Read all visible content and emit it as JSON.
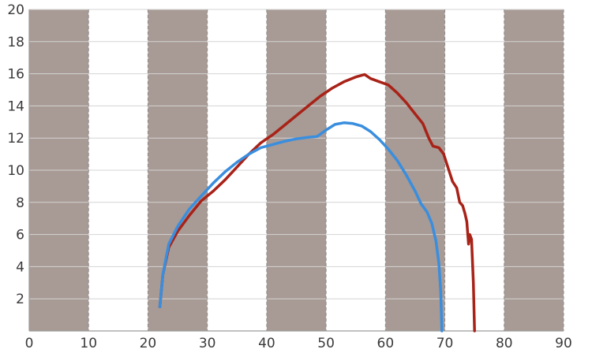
{
  "chart_data": {
    "type": "line",
    "title": "",
    "xlabel": "",
    "ylabel": "",
    "xlim": [
      0,
      90
    ],
    "ylim": [
      0,
      20
    ],
    "x_ticks": [
      0,
      10,
      20,
      30,
      40,
      50,
      60,
      70,
      80,
      90
    ],
    "y_ticks": [
      2,
      4,
      6,
      8,
      10,
      12,
      14,
      16,
      18,
      20
    ],
    "grid": "horizontal solid lines, vertical dashed lines",
    "background_bands": {
      "color": "#a89a94",
      "ranges": [
        [
          0,
          10
        ],
        [
          20,
          30
        ],
        [
          40,
          50
        ],
        [
          60,
          70
        ],
        [
          80,
          90
        ]
      ]
    },
    "series": [
      {
        "color": "#a82218",
        "points": [
          [
            22,
            1.5
          ],
          [
            22.5,
            3.5
          ],
          [
            23.5,
            5.2
          ],
          [
            25,
            6.2
          ],
          [
            27,
            7.2
          ],
          [
            29,
            8.1
          ],
          [
            31,
            8.7
          ],
          [
            33,
            9.4
          ],
          [
            35,
            10.2
          ],
          [
            37,
            11.0
          ],
          [
            39,
            11.7
          ],
          [
            41,
            12.2
          ],
          [
            43,
            12.8
          ],
          [
            45,
            13.4
          ],
          [
            47,
            14.0
          ],
          [
            49,
            14.6
          ],
          [
            51,
            15.1
          ],
          [
            53,
            15.5
          ],
          [
            55,
            15.8
          ],
          [
            56.5,
            15.95
          ],
          [
            57.5,
            15.7
          ],
          [
            59,
            15.5
          ],
          [
            60.5,
            15.3
          ],
          [
            62,
            14.8
          ],
          [
            63.5,
            14.2
          ],
          [
            65,
            13.5
          ],
          [
            66.3,
            12.9
          ],
          [
            67.3,
            12.0
          ],
          [
            68,
            11.5
          ],
          [
            69,
            11.4
          ],
          [
            69.8,
            11.0
          ],
          [
            70.5,
            10.2
          ],
          [
            71.3,
            9.3
          ],
          [
            72,
            8.9
          ],
          [
            72.5,
            8.0
          ],
          [
            73,
            7.8
          ],
          [
            73.4,
            7.3
          ],
          [
            73.7,
            6.8
          ],
          [
            74,
            5.4
          ],
          [
            74.2,
            6.0
          ],
          [
            74.5,
            5.7
          ],
          [
            74.8,
            3.0
          ],
          [
            75,
            0
          ]
        ]
      },
      {
        "color": "#3a8ede",
        "points": [
          [
            22,
            1.5
          ],
          [
            22.5,
            3.5
          ],
          [
            23.5,
            5.4
          ],
          [
            25,
            6.5
          ],
          [
            27,
            7.6
          ],
          [
            29,
            8.4
          ],
          [
            31,
            9.2
          ],
          [
            33,
            9.9
          ],
          [
            35,
            10.5
          ],
          [
            37,
            11.0
          ],
          [
            39,
            11.4
          ],
          [
            41,
            11.6
          ],
          [
            43,
            11.8
          ],
          [
            45,
            11.95
          ],
          [
            47,
            12.05
          ],
          [
            48.5,
            12.1
          ],
          [
            50,
            12.5
          ],
          [
            51.5,
            12.85
          ],
          [
            53,
            12.95
          ],
          [
            54.5,
            12.9
          ],
          [
            56,
            12.75
          ],
          [
            57.5,
            12.4
          ],
          [
            59,
            11.9
          ],
          [
            60.5,
            11.3
          ],
          [
            62,
            10.6
          ],
          [
            63.5,
            9.7
          ],
          [
            65,
            8.7
          ],
          [
            66,
            7.9
          ],
          [
            67,
            7.4
          ],
          [
            67.8,
            6.7
          ],
          [
            68.5,
            5.6
          ],
          [
            69,
            4.2
          ],
          [
            69.3,
            2.5
          ],
          [
            69.5,
            0
          ]
        ]
      }
    ]
  }
}
